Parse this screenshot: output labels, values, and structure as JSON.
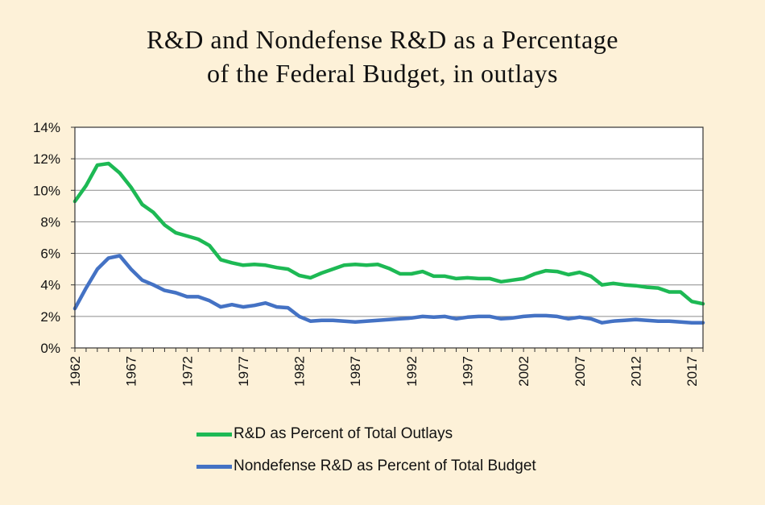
{
  "page": {
    "background": "#fdf1d8"
  },
  "chart_data": {
    "type": "line",
    "title": "R&D and Nondefense R&D as a Percentage of the Federal Budget, in outlays",
    "title_lines": [
      "R&D and Nondefense R&D as a Percentage",
      "of the Federal Budget, in outlays"
    ],
    "xlabel": "",
    "ylabel": "",
    "xlim": [
      1962,
      2018
    ],
    "ylim": [
      0,
      14
    ],
    "y_ticks": [
      0,
      2,
      4,
      6,
      8,
      10,
      12,
      14
    ],
    "y_tick_labels": [
      "0%",
      "2%",
      "4%",
      "6%",
      "8%",
      "10%",
      "12%",
      "14%"
    ],
    "x_ticks": [
      1962,
      1967,
      1972,
      1977,
      1982,
      1987,
      1992,
      1997,
      2002,
      2007,
      2012,
      2017
    ],
    "x_tick_labels": [
      "1962",
      "1967",
      "1972",
      "1977",
      "1982",
      "1987",
      "1992",
      "1997",
      "2002",
      "2007",
      "2012",
      "2017"
    ],
    "grid": true,
    "legend_position": "bottom-left",
    "x": [
      1962,
      1963,
      1964,
      1965,
      1966,
      1967,
      1968,
      1969,
      1970,
      1971,
      1972,
      1973,
      1974,
      1975,
      1976,
      1977,
      1978,
      1979,
      1980,
      1981,
      1982,
      1983,
      1984,
      1985,
      1986,
      1987,
      1988,
      1989,
      1990,
      1991,
      1992,
      1993,
      1994,
      1995,
      1996,
      1997,
      1998,
      1999,
      2000,
      2001,
      2002,
      2003,
      2004,
      2005,
      2006,
      2007,
      2008,
      2009,
      2010,
      2011,
      2012,
      2013,
      2014,
      2015,
      2016,
      2017,
      2018
    ],
    "series": [
      {
        "name": "R&D as Percent of Total Outlays",
        "color": "#1db954",
        "values": [
          9.3,
          10.3,
          11.6,
          11.7,
          11.1,
          10.2,
          9.1,
          8.6,
          7.8,
          7.3,
          7.1,
          6.9,
          6.5,
          5.6,
          5.4,
          5.25,
          5.3,
          5.25,
          5.1,
          5.0,
          4.6,
          4.45,
          4.75,
          5.0,
          5.25,
          5.3,
          5.25,
          5.3,
          5.05,
          4.7,
          4.7,
          4.85,
          4.55,
          4.55,
          4.4,
          4.45,
          4.4,
          4.4,
          4.2,
          4.3,
          4.4,
          4.7,
          4.9,
          4.85,
          4.65,
          4.8,
          4.55,
          4.0,
          4.1,
          4.0,
          3.95,
          3.85,
          3.8,
          3.55,
          3.55,
          2.95,
          2.8
        ]
      },
      {
        "name": "Nondefense R&D as Percent of Total Budget",
        "color": "#4472c4",
        "values": [
          2.5,
          3.8,
          5.0,
          5.7,
          5.85,
          5.0,
          4.3,
          4.0,
          3.65,
          3.5,
          3.25,
          3.25,
          3.0,
          2.6,
          2.75,
          2.6,
          2.7,
          2.85,
          2.6,
          2.55,
          2.0,
          1.7,
          1.75,
          1.75,
          1.7,
          1.65,
          1.7,
          1.75,
          1.8,
          1.85,
          1.9,
          2.0,
          1.95,
          2.0,
          1.85,
          1.95,
          2.0,
          2.0,
          1.85,
          1.9,
          2.0,
          2.05,
          2.05,
          2.0,
          1.85,
          1.95,
          1.85,
          1.6,
          1.7,
          1.75,
          1.8,
          1.75,
          1.7,
          1.7,
          1.65,
          1.6,
          1.6
        ]
      }
    ]
  }
}
